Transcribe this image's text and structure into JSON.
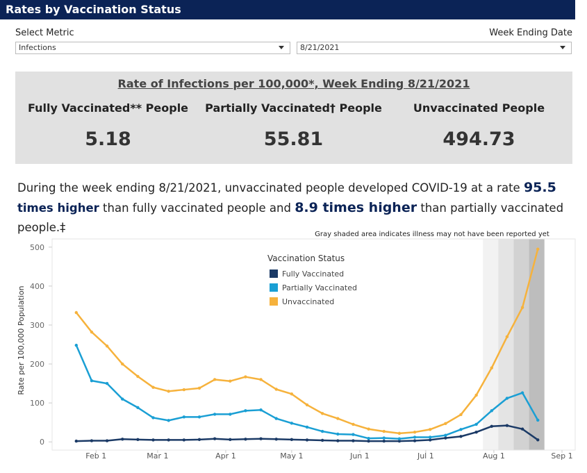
{
  "header": {
    "title": "Rates by Vaccination Status"
  },
  "filters": [
    {
      "label": "Select Metric",
      "value": "Infections"
    },
    {
      "label": "Week Ending Date",
      "value": "8/21/2021"
    }
  ],
  "summary": {
    "title": "Rate of Infections per 100,000*, Week Ending 8/21/2021",
    "columns": [
      {
        "label": "Fully Vaccinated** People",
        "value": 5.18
      },
      {
        "label": "Partially Vaccinated† People",
        "value": 55.81
      },
      {
        "label": "Unvaccinated People",
        "value": 494.73
      }
    ]
  },
  "paragraph": [
    {
      "text": "During the week ending 8/21/2021, unvaccinated people developed COVID-19 at a rate ",
      "style": "plain"
    },
    {
      "text": 95.5,
      "style": "big"
    },
    {
      "text": " times higher",
      "style": "bold"
    },
    {
      "text": " than fully vaccinated people and ",
      "style": "plain"
    },
    {
      "text": "8.9 times higher",
      "style": "big"
    },
    {
      "text": " than partially vaccinated people.‡",
      "style": "plain"
    }
  ],
  "chart_data": {
    "type": "line",
    "annotation": "Gray shaded area indicates illness may not have been reported yet",
    "y_label": "Rate per 100,000 Population",
    "legend_title": "Vaccination Status",
    "x": [
      "Jan 23",
      "Jan 30",
      "Feb 6",
      "Feb 13",
      "Feb 20",
      "Feb 27",
      "Mar 6",
      "Mar 13",
      "Mar 20",
      "Mar 27",
      "Apr 3",
      "Apr 10",
      "Apr 17",
      "Apr 24",
      "May 1",
      "May 8",
      "May 15",
      "May 22",
      "May 29",
      "Jun 5",
      "Jun 12",
      "Jun 19",
      "Jun 26",
      "Jul 3",
      "Jul 10",
      "Jul 17",
      "Jul 24",
      "Jul 31",
      "Aug 7",
      "Aug 14",
      "Aug 21"
    ],
    "series": [
      {
        "name": "Fully Vaccinated",
        "color": "#1b3a66",
        "values": [
          2,
          3,
          3,
          7,
          6,
          5,
          5,
          5,
          6,
          8,
          6,
          7,
          8,
          7,
          6,
          5,
          4,
          3,
          3,
          2,
          2,
          2,
          3,
          5,
          10,
          14,
          25,
          40,
          42,
          33,
          5.18
        ]
      },
      {
        "name": "Partially Vaccinated",
        "color": "#1a9fd4",
        "values": [
          248,
          157,
          150,
          110,
          88,
          62,
          55,
          64,
          64,
          71,
          71,
          80,
          82,
          60,
          48,
          38,
          27,
          20,
          19,
          9,
          10,
          8,
          12,
          12,
          17,
          32,
          45,
          80,
          112,
          126,
          55.81
        ]
      },
      {
        "name": "Unvaccinated",
        "color": "#f6b23c",
        "values": [
          332,
          282,
          246,
          200,
          168,
          140,
          130,
          134,
          138,
          160,
          156,
          167,
          160,
          135,
          123,
          95,
          73,
          60,
          45,
          33,
          27,
          22,
          25,
          32,
          47,
          70,
          120,
          190,
          270,
          345,
          494.73
        ]
      }
    ],
    "xlim": [
      "Jan 12",
      "Sep 7"
    ],
    "xticks": [
      "Feb 1",
      "Mar 1",
      "Apr 1",
      "May 1",
      "Jun 1",
      "Jul 1",
      "Aug 1",
      "Sep 1"
    ],
    "ylim": [
      -21,
      521
    ],
    "yticks": [
      0,
      100,
      200,
      300,
      400,
      500
    ],
    "grid": false,
    "shaded_regions": [
      {
        "from": "Jul 27",
        "to": "Aug 3",
        "color": "#f2f2f2"
      },
      {
        "from": "Aug 3",
        "to": "Aug 10",
        "color": "#e4e4e4"
      },
      {
        "from": "Aug 10",
        "to": "Aug 17",
        "color": "#d2d2d2"
      },
      {
        "from": "Aug 17",
        "to": "Aug 24",
        "color": "#bdbdbd"
      }
    ]
  }
}
